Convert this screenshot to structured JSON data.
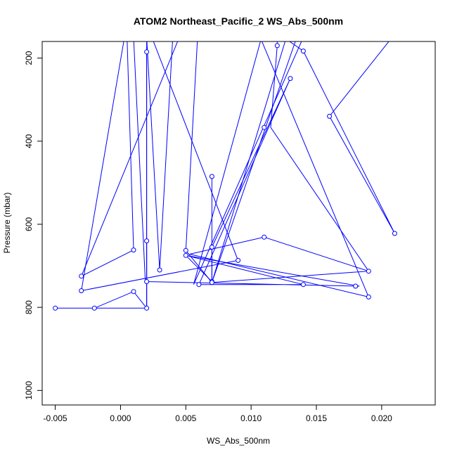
{
  "chart_data": {
    "type": "scatter",
    "title": "ATOM2 Northeast_Pacific_2 WS_Abs_500nm",
    "xlabel": "WS_Abs_500nm",
    "ylabel": "Pressure (mbar)",
    "xlim": [
      -0.006,
      0.0241
    ],
    "ylim": [
      1035,
      160
    ],
    "y_reversed": true,
    "grid": false,
    "color": "#0000ff",
    "x_ticks": [
      -0.005,
      0.0,
      0.005,
      0.01,
      0.015,
      0.02
    ],
    "x_tick_labels": [
      "-0.005",
      "0.000",
      "0.005",
      "0.010",
      "0.015",
      "0.020"
    ],
    "y_ticks": [
      200,
      400,
      600,
      800,
      1000
    ],
    "y_tick_labels": [
      "200",
      "400",
      "600",
      "800",
      "1000"
    ],
    "series": [
      {
        "points": [
          {
            "x": 0.0127,
            "y": 150
          },
          {
            "x": 0.007,
            "y": 740
          },
          {
            "x": 0.0135,
            "y": 150
          }
        ]
      },
      {
        "points": [
          {
            "x": 0.0059,
            "y": 150
          },
          {
            "x": 0.005,
            "y": 663
          },
          {
            "x": 0.007,
            "y": 740
          },
          {
            "x": 0.019,
            "y": 713
          },
          {
            "x": 0.0115,
            "y": 367
          },
          {
            "x": 0.012,
            "y": 170
          },
          {
            "x": 0.012,
            "y": 150
          }
        ]
      },
      {
        "points": [
          {
            "x": 0.0045,
            "y": 150
          },
          {
            "x": -0.003,
            "y": 725
          },
          {
            "x": 0.001,
            "y": 662
          },
          {
            "x": 0.0005,
            "y": 150
          }
        ]
      },
      {
        "points": [
          {
            "x": 0.001,
            "y": 150
          },
          {
            "x": 0.0019,
            "y": 738
          },
          {
            "x": 0.0183,
            "y": 749
          },
          {
            "x": 0.005,
            "y": 675
          },
          {
            "x": 0.007,
            "y": 738
          },
          {
            "x": 0.007,
            "y": 655
          },
          {
            "x": 0.013,
            "y": 249
          },
          {
            "x": 0.006,
            "y": 745
          },
          {
            "x": 0.014,
            "y": 745
          },
          {
            "x": 0.005,
            "y": 675
          }
        ]
      },
      {
        "points": [
          {
            "x": 0.002,
            "y": 150
          },
          {
            "x": 0.002,
            "y": 802
          },
          {
            "x": 0.001,
            "y": 762
          },
          {
            "x": -0.002,
            "y": 802
          },
          {
            "x": -0.005,
            "y": 802
          },
          {
            "x": 0.002,
            "y": 802
          }
        ]
      },
      {
        "points": [
          {
            "x": 0.002,
            "y": 185
          },
          {
            "x": 0.002,
            "y": 802
          }
        ]
      },
      {
        "points": [
          {
            "x": 0.002,
            "y": 640
          },
          {
            "x": 0.002,
            "y": 802
          }
        ]
      },
      {
        "points": [
          {
            "x": 0.0003,
            "y": 150
          },
          {
            "x": -0.003,
            "y": 760
          },
          {
            "x": 0.009,
            "y": 687
          },
          {
            "x": 0.0024,
            "y": 150
          },
          {
            "x": 0.005,
            "y": 150
          }
        ]
      },
      {
        "points": [
          {
            "x": 0.002,
            "y": 150
          },
          {
            "x": 0.003,
            "y": 710
          },
          {
            "x": 0.004,
            "y": 150
          }
        ]
      },
      {
        "points": [
          {
            "x": 0.007,
            "y": 485
          },
          {
            "x": 0.007,
            "y": 740
          }
        ]
      },
      {
        "points": [
          {
            "x": 0.0108,
            "y": 150
          },
          {
            "x": 0.0056,
            "y": 745
          },
          {
            "x": 0.014,
            "y": 150
          },
          {
            "x": 0.0135,
            "y": 150
          },
          {
            "x": 0.0122,
            "y": 150
          }
        ]
      },
      {
        "points": [
          {
            "x": 0.0125,
            "y": 150
          },
          {
            "x": 0.014,
            "y": 183
          },
          {
            "x": 0.021,
            "y": 622
          },
          {
            "x": 0.016,
            "y": 340
          },
          {
            "x": 0.0208,
            "y": 150
          }
        ]
      },
      {
        "points": [
          {
            "x": 0.0107,
            "y": 150
          },
          {
            "x": 0.019,
            "y": 775
          },
          {
            "x": 0.0053,
            "y": 672
          },
          {
            "x": 0.011,
            "y": 631
          },
          {
            "x": 0.019,
            "y": 713
          }
        ]
      }
    ],
    "markers": [
      {
        "x": 0.002,
        "y": 185
      },
      {
        "x": 0.012,
        "y": 170
      },
      {
        "x": 0.014,
        "y": 183
      },
      {
        "x": 0.013,
        "y": 249
      },
      {
        "x": 0.016,
        "y": 340
      },
      {
        "x": 0.011,
        "y": 367
      },
      {
        "x": 0.007,
        "y": 485
      },
      {
        "x": 0.021,
        "y": 622
      },
      {
        "x": 0.011,
        "y": 631
      },
      {
        "x": 0.002,
        "y": 640
      },
      {
        "x": 0.007,
        "y": 655
      },
      {
        "x": 0.001,
        "y": 662
      },
      {
        "x": 0.005,
        "y": 663
      },
      {
        "x": 0.005,
        "y": 675
      },
      {
        "x": 0.009,
        "y": 687
      },
      {
        "x": 0.003,
        "y": 710
      },
      {
        "x": 0.019,
        "y": 713
      },
      {
        "x": -0.003,
        "y": 725
      },
      {
        "x": 0.002,
        "y": 738
      },
      {
        "x": 0.007,
        "y": 738
      },
      {
        "x": 0.007,
        "y": 740
      },
      {
        "x": 0.006,
        "y": 745
      },
      {
        "x": 0.014,
        "y": 745
      },
      {
        "x": 0.018,
        "y": 749
      },
      {
        "x": -0.003,
        "y": 760
      },
      {
        "x": 0.001,
        "y": 762
      },
      {
        "x": 0.019,
        "y": 775
      },
      {
        "x": -0.005,
        "y": 802
      },
      {
        "x": -0.002,
        "y": 802
      },
      {
        "x": 0.002,
        "y": 802
      }
    ]
  }
}
